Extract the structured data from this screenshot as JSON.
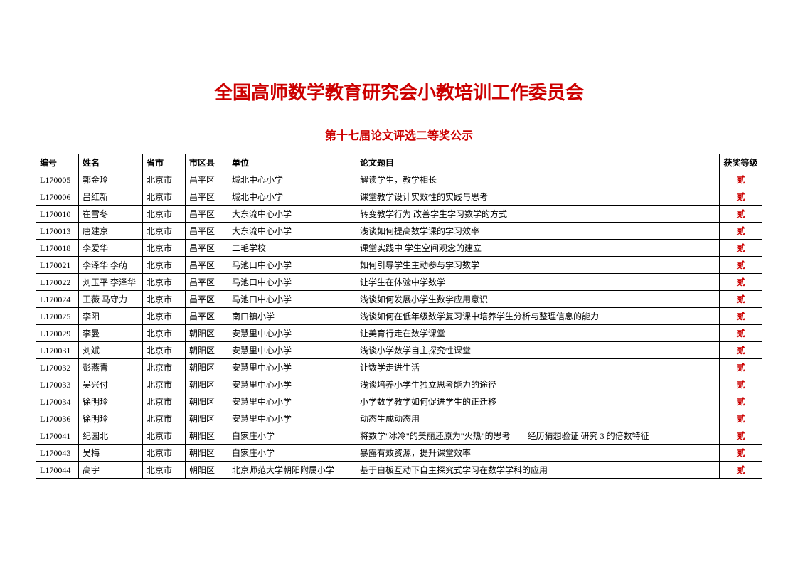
{
  "document": {
    "main_title": "全国高师数学教育研究会小教培训工作委员会",
    "sub_title": "第十七届论文评选二等奖公示"
  },
  "table": {
    "columns": [
      "编号",
      "姓名",
      "省市",
      "市区县",
      "单位",
      "论文题目",
      "获奖等级"
    ],
    "rows": [
      [
        "L170005",
        "郭金玲",
        "北京市",
        "昌平区",
        "城北中心小学",
        "解读学生，教学相长",
        "贰"
      ],
      [
        "L170006",
        "吕红新",
        "北京市",
        "昌平区",
        "城北中心小学",
        "课堂教学设计实效性的实践与思考",
        "贰"
      ],
      [
        "L170010",
        "崔雪冬",
        "北京市",
        "昌平区",
        "大东流中心小学",
        "转变教学行为 改善学生学习数学的方式",
        "贰"
      ],
      [
        "L170013",
        "唐建京",
        "北京市",
        "昌平区",
        "大东流中心小学",
        "浅谈如何提高数学课的学习效率",
        "贰"
      ],
      [
        "L170018",
        "李爱华",
        "北京市",
        "昌平区",
        "二毛学校",
        "课堂实践中 学生空间观念的建立",
        "贰"
      ],
      [
        "L170021",
        "李泽华 李萌",
        "北京市",
        "昌平区",
        "马池口中心小学",
        "如何引导学生主动参与学习数学",
        "贰"
      ],
      [
        "L170022",
        "刘玉平 李泽华",
        "北京市",
        "昌平区",
        "马池口中心小学",
        "让学生在体验中学数学",
        "贰"
      ],
      [
        "L170024",
        "王薇 马守力",
        "北京市",
        "昌平区",
        "马池口中心小学",
        "浅谈如何发展小学生数学应用意识",
        "贰"
      ],
      [
        "L170025",
        "李阳",
        "北京市",
        "昌平区",
        "南口镇小学",
        "浅谈如何在低年级数学复习课中培养学生分析与整理信息的能力",
        "贰"
      ],
      [
        "L170029",
        "李曼",
        "北京市",
        "朝阳区",
        "安慧里中心小学",
        "让美育行走在数学课堂",
        "贰"
      ],
      [
        "L170031",
        "刘斌",
        "北京市",
        "朝阳区",
        "安慧里中心小学",
        "浅谈小学数学自主探究性课堂",
        "贰"
      ],
      [
        "L170032",
        "彭燕青",
        "北京市",
        "朝阳区",
        "安慧里中心小学",
        "让数学走进生活",
        "贰"
      ],
      [
        "L170033",
        "吴兴付",
        "北京市",
        "朝阳区",
        "安慧里中心小学",
        "浅谈培养小学生独立思考能力的途径",
        "贰"
      ],
      [
        "L170034",
        "徐明玲",
        "北京市",
        "朝阳区",
        "安慧里中心小学",
        "小学数学教学如何促进学生的正迁移",
        "贰"
      ],
      [
        "L170036",
        "徐明玲",
        "北京市",
        "朝阳区",
        "安慧里中心小学",
        "动态生成动态用",
        "贰"
      ],
      [
        "L170041",
        "纪园北",
        "北京市",
        "朝阳区",
        "白家庄小学",
        "将数学\"冰冷\"的美丽还原为\"火热\"的思考——经历猜想验证 研究 3 的倍数特征",
        "贰"
      ],
      [
        "L170043",
        "吴梅",
        "北京市",
        "朝阳区",
        "白家庄小学",
        "暴露有效资源，提升课堂效率",
        "贰"
      ],
      [
        "L170044",
        "高宇",
        "北京市",
        "朝阳区",
        "北京师范大学朝阳附属小学",
        "基于白板互动下自主探究式学习在数学学科的应用",
        "贰"
      ]
    ],
    "col_classes": [
      "col-id",
      "col-name",
      "col-province",
      "col-district",
      "col-unit",
      "col-title",
      "col-award"
    ],
    "styling": {
      "title_color": "#cc0000",
      "award_color": "#cc0000",
      "border_color": "#000000",
      "background_color": "#ffffff",
      "title_fontsize_pt": 26,
      "subtitle_fontsize_pt": 16,
      "body_fontsize_pt": 12
    }
  }
}
